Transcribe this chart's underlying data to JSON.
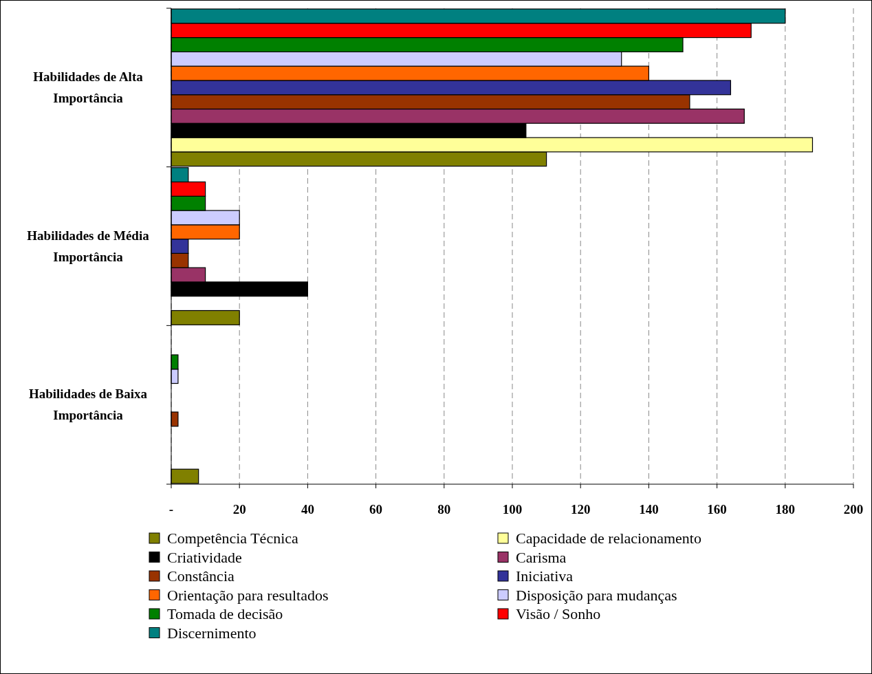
{
  "chart_data": {
    "type": "bar",
    "orientation": "horizontal",
    "categories": [
      "Habilidades de Alta Importância",
      "Habilidades de Média Importância",
      "Habilidades de Baixa Importância"
    ],
    "xlim": [
      0,
      200
    ],
    "xticks": [
      {
        "value": 0,
        "label": "-"
      },
      20,
      40,
      60,
      80,
      100,
      120,
      140,
      160,
      180,
      200
    ],
    "grid": "x",
    "legend": "bottom",
    "series": [
      {
        "name": "Competência Técnica",
        "color": "#808000",
        "values": [
          110,
          20,
          8
        ]
      },
      {
        "name": "Capacidade de relacionamento",
        "color": "#ffff99",
        "values": [
          188,
          0,
          0
        ]
      },
      {
        "name": "Criatividade",
        "color": "#000000",
        "values": [
          104,
          40,
          0
        ]
      },
      {
        "name": "Carisma",
        "color": "#993366",
        "values": [
          168,
          10,
          0
        ]
      },
      {
        "name": "Constância",
        "color": "#993300",
        "values": [
          152,
          5,
          2
        ]
      },
      {
        "name": "Iniciativa",
        "color": "#333399",
        "values": [
          164,
          5,
          0
        ]
      },
      {
        "name": "Orientação para resultados",
        "color": "#ff6600",
        "values": [
          140,
          20,
          0
        ]
      },
      {
        "name": "Disposição para mudanças",
        "color": "#ccccff",
        "values": [
          132,
          20,
          2
        ]
      },
      {
        "name": "Tomada de decisão",
        "color": "#008000",
        "values": [
          150,
          10,
          2
        ]
      },
      {
        "name": "Visão / Sonho",
        "color": "#ff0000",
        "values": [
          170,
          10,
          0
        ]
      },
      {
        "name": "Discernimento",
        "color": "#008080",
        "values": [
          180,
          5,
          0
        ]
      }
    ]
  }
}
